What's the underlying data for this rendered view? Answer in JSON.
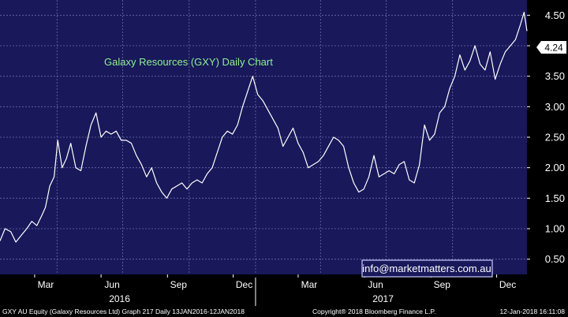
{
  "chart_data": {
    "type": "line",
    "title": "Galaxy Resources (GXY) Daily Chart",
    "watermark": "info@marketmatters.com.au",
    "last_price_label": "4.24",
    "x_month_ticks": [
      "Mar",
      "Jun",
      "Sep",
      "Dec",
      "Mar",
      "Jun",
      "Sep",
      "Dec"
    ],
    "x_year_labels": [
      "2016",
      "2017"
    ],
    "y_ticks": [
      "0.50",
      "1.00",
      "1.50",
      "2.00",
      "2.50",
      "3.00",
      "3.50",
      "4.00",
      "4.50"
    ],
    "ylim": [
      0.25,
      4.75
    ],
    "xlim": [
      "2016-01-13",
      "2018-01-12"
    ],
    "grid": true,
    "colors": {
      "background": "#18185a",
      "line": "#ffffff",
      "grid": "#6e6ea8",
      "title": "#8ff08f",
      "watermark_border": "#c8c8ff"
    },
    "series": [
      {
        "points": [
          [
            "2016-01-13",
            0.8
          ],
          [
            "2016-01-20",
            1.0
          ],
          [
            "2016-01-28",
            0.95
          ],
          [
            "2016-02-04",
            0.78
          ],
          [
            "2016-02-12",
            0.9
          ],
          [
            "2016-02-19",
            1.0
          ],
          [
            "2016-02-26",
            1.12
          ],
          [
            "2016-03-04",
            1.05
          ],
          [
            "2016-03-11",
            1.22
          ],
          [
            "2016-03-16",
            1.35
          ],
          [
            "2016-03-22",
            1.7
          ],
          [
            "2016-03-28",
            1.85
          ],
          [
            "2016-04-02",
            2.45
          ],
          [
            "2016-04-08",
            2.0
          ],
          [
            "2016-04-14",
            2.15
          ],
          [
            "2016-04-20",
            2.4
          ],
          [
            "2016-04-27",
            2.0
          ],
          [
            "2016-05-04",
            1.95
          ],
          [
            "2016-05-11",
            2.35
          ],
          [
            "2016-05-18",
            2.7
          ],
          [
            "2016-05-25",
            2.9
          ],
          [
            "2016-06-01",
            2.5
          ],
          [
            "2016-06-08",
            2.6
          ],
          [
            "2016-06-15",
            2.55
          ],
          [
            "2016-06-22",
            2.6
          ],
          [
            "2016-06-29",
            2.45
          ],
          [
            "2016-07-06",
            2.45
          ],
          [
            "2016-07-13",
            2.4
          ],
          [
            "2016-07-20",
            2.2
          ],
          [
            "2016-07-27",
            2.05
          ],
          [
            "2016-08-03",
            1.85
          ],
          [
            "2016-08-10",
            2.0
          ],
          [
            "2016-08-17",
            1.75
          ],
          [
            "2016-08-24",
            1.6
          ],
          [
            "2016-08-31",
            1.5
          ],
          [
            "2016-09-07",
            1.65
          ],
          [
            "2016-09-14",
            1.7
          ],
          [
            "2016-09-21",
            1.75
          ],
          [
            "2016-09-28",
            1.65
          ],
          [
            "2016-10-05",
            1.75
          ],
          [
            "2016-10-12",
            1.8
          ],
          [
            "2016-10-19",
            1.75
          ],
          [
            "2016-10-26",
            1.9
          ],
          [
            "2016-11-02",
            2.0
          ],
          [
            "2016-11-09",
            2.25
          ],
          [
            "2016-11-16",
            2.5
          ],
          [
            "2016-11-23",
            2.6
          ],
          [
            "2016-11-30",
            2.55
          ],
          [
            "2016-12-07",
            2.7
          ],
          [
            "2016-12-14",
            3.0
          ],
          [
            "2016-12-21",
            3.25
          ],
          [
            "2016-12-28",
            3.5
          ],
          [
            "2017-01-04",
            3.2
          ],
          [
            "2017-01-11",
            3.1
          ],
          [
            "2017-01-18",
            2.95
          ],
          [
            "2017-01-25",
            2.8
          ],
          [
            "2017-02-01",
            2.65
          ],
          [
            "2017-02-08",
            2.35
          ],
          [
            "2017-02-15",
            2.5
          ],
          [
            "2017-02-22",
            2.65
          ],
          [
            "2017-03-01",
            2.4
          ],
          [
            "2017-03-08",
            2.25
          ],
          [
            "2017-03-15",
            2.0
          ],
          [
            "2017-03-22",
            2.05
          ],
          [
            "2017-03-29",
            2.1
          ],
          [
            "2017-04-05",
            2.2
          ],
          [
            "2017-04-12",
            2.35
          ],
          [
            "2017-04-19",
            2.5
          ],
          [
            "2017-04-26",
            2.45
          ],
          [
            "2017-05-03",
            2.35
          ],
          [
            "2017-05-10",
            2.0
          ],
          [
            "2017-05-17",
            1.75
          ],
          [
            "2017-05-24",
            1.6
          ],
          [
            "2017-05-31",
            1.65
          ],
          [
            "2017-06-07",
            1.85
          ],
          [
            "2017-06-14",
            2.2
          ],
          [
            "2017-06-21",
            1.85
          ],
          [
            "2017-06-28",
            1.9
          ],
          [
            "2017-07-05",
            1.95
          ],
          [
            "2017-07-12",
            1.9
          ],
          [
            "2017-07-19",
            2.05
          ],
          [
            "2017-07-26",
            2.1
          ],
          [
            "2017-08-02",
            1.8
          ],
          [
            "2017-08-09",
            1.75
          ],
          [
            "2017-08-16",
            2.05
          ],
          [
            "2017-08-23",
            2.7
          ],
          [
            "2017-08-30",
            2.45
          ],
          [
            "2017-09-06",
            2.55
          ],
          [
            "2017-09-13",
            2.9
          ],
          [
            "2017-09-20",
            3.0
          ],
          [
            "2017-09-27",
            3.3
          ],
          [
            "2017-10-04",
            3.5
          ],
          [
            "2017-10-11",
            3.85
          ],
          [
            "2017-10-18",
            3.6
          ],
          [
            "2017-10-25",
            3.75
          ],
          [
            "2017-11-01",
            4.0
          ],
          [
            "2017-11-08",
            3.7
          ],
          [
            "2017-11-15",
            3.6
          ],
          [
            "2017-11-22",
            3.9
          ],
          [
            "2017-11-29",
            3.45
          ],
          [
            "2017-12-06",
            3.7
          ],
          [
            "2017-12-13",
            3.9
          ],
          [
            "2017-12-20",
            4.0
          ],
          [
            "2017-12-27",
            4.1
          ],
          [
            "2018-01-03",
            4.35
          ],
          [
            "2018-01-08",
            4.55
          ],
          [
            "2018-01-12",
            4.24
          ]
        ]
      }
    ]
  },
  "footer": {
    "left": "GXY AU Equity (Galaxy Resources Ltd) Graph 217  Daily 13JAN2016-12JAN2018",
    "center": "Copyright® 2018 Bloomberg Finance L.P.",
    "right": "12-Jan-2018 16:11:08"
  }
}
